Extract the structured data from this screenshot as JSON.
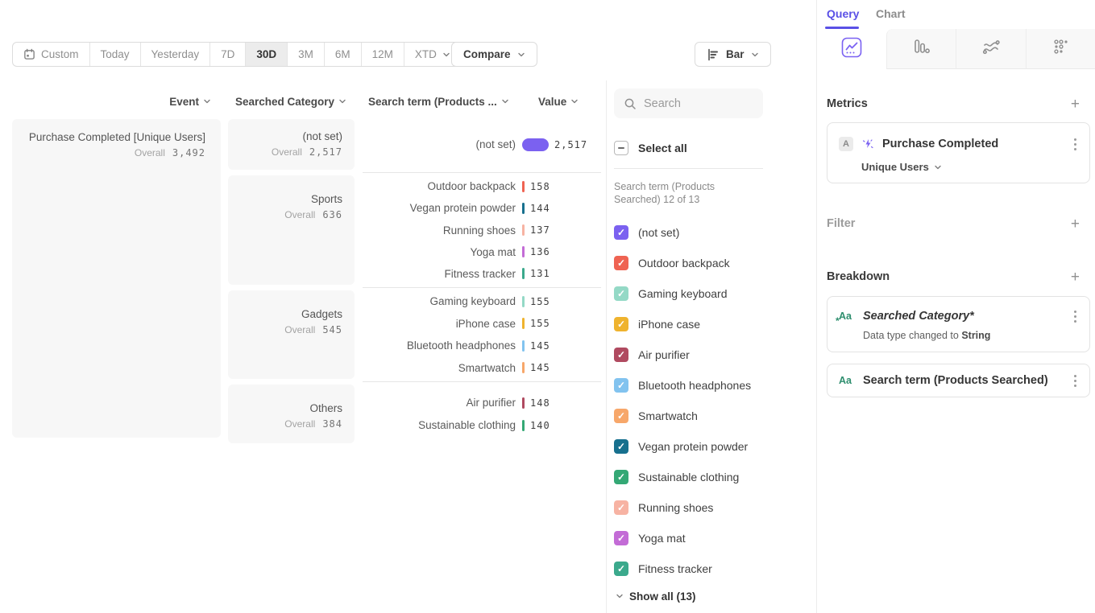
{
  "colors": {
    "accent_purple": "#5a50e6",
    "icon_purple": "#7b62f2",
    "green_icon": "#2e8e6e"
  },
  "icons": {
    "plus": "+"
  },
  "toolbar": {
    "date_ranges": [
      "Custom",
      "Today",
      "Yesterday",
      "7D",
      "30D",
      "3M",
      "6M",
      "12M",
      "XTD"
    ],
    "selected_range": "30D",
    "compare_label": "Compare",
    "chart_type_label": "Bar"
  },
  "table": {
    "headers": {
      "event": "Event",
      "category": "Searched Category",
      "term": "Search term (Products ...",
      "value": "Value"
    },
    "overall_label": "Overall",
    "event": {
      "name": "Purchase Completed [Unique Users]",
      "overall_value": "3,492"
    },
    "groups": [
      {
        "category": "(not set)",
        "overall": "2,517",
        "rows": [
          {
            "term": "(not set)",
            "value": "2,517",
            "color": "#7b61f0",
            "big": true
          }
        ]
      },
      {
        "category": "Sports",
        "overall": "636",
        "rows": [
          {
            "term": "Outdoor backpack",
            "value": "158",
            "color": "#ef6352"
          },
          {
            "term": "Vegan protein powder",
            "value": "144",
            "color": "#17708e"
          },
          {
            "term": "Running shoes",
            "value": "137",
            "color": "#f7b3a3"
          },
          {
            "term": "Yoga mat",
            "value": "136",
            "color": "#c36cd6"
          },
          {
            "term": "Fitness tracker",
            "value": "131",
            "color": "#3ba98c"
          }
        ]
      },
      {
        "category": "Gadgets",
        "overall": "545",
        "rows": [
          {
            "term": "Gaming keyboard",
            "value": "155",
            "color": "#94d9c6"
          },
          {
            "term": "iPhone case",
            "value": "155",
            "color": "#efb32e"
          },
          {
            "term": "Bluetooth headphones",
            "value": "145",
            "color": "#82c3ef"
          },
          {
            "term": "Smartwatch",
            "value": "145",
            "color": "#f7a76a"
          }
        ]
      },
      {
        "category": "Others",
        "overall": "384",
        "rows": [
          {
            "term": "Air purifier",
            "value": "148",
            "color": "#b04a60"
          },
          {
            "term": "Sustainable clothing",
            "value": "140",
            "color": "#34a875"
          }
        ]
      }
    ]
  },
  "legend": {
    "search_placeholder": "Search",
    "select_all_label": "Select all",
    "list_label": "Search term (Products Searched) 12 of 13",
    "items": [
      {
        "label": "(not set)",
        "color": "#7b61f0",
        "checked": true
      },
      {
        "label": "Outdoor backpack",
        "color": "#ef6352",
        "checked": true
      },
      {
        "label": "Gaming keyboard",
        "color": "#94d9c6",
        "checked": true
      },
      {
        "label": "iPhone case",
        "color": "#efb32e",
        "checked": true
      },
      {
        "label": "Air purifier",
        "color": "#b04a60",
        "checked": true
      },
      {
        "label": "Bluetooth headphones",
        "color": "#82c3ef",
        "checked": true
      },
      {
        "label": "Smartwatch",
        "color": "#f7a76a",
        "checked": true
      },
      {
        "label": "Vegan protein powder",
        "color": "#17708e",
        "checked": true
      },
      {
        "label": "Sustainable clothing",
        "color": "#34a875",
        "checked": true
      },
      {
        "label": "Running shoes",
        "color": "#f7b3a3",
        "checked": true
      },
      {
        "label": "Yoga mat",
        "color": "#c36cd6",
        "checked": true
      },
      {
        "label": "Fitness tracker",
        "color": "#3ba98c",
        "checked": true,
        "pattern": true
      }
    ],
    "show_all_label": "Show all (13)"
  },
  "query_panel": {
    "header_tabs": [
      {
        "label": "Query",
        "active": true
      },
      {
        "label": "Chart",
        "active": false
      }
    ],
    "view_tabs": [
      {
        "icon": "insights",
        "active": true
      },
      {
        "icon": "funnels",
        "active": false
      },
      {
        "icon": "flows",
        "active": false
      },
      {
        "icon": "retention",
        "active": false
      }
    ],
    "metrics_heading": "Metrics",
    "metric": {
      "badge": "A",
      "name": "Purchase Completed",
      "aggregation": "Unique Users"
    },
    "filter_heading": "Filter",
    "breakdown_heading": "Breakdown",
    "breakdowns": [
      {
        "label": "Searched Category*",
        "italic": true,
        "modified": true,
        "note": "Data type changed to ",
        "note_bold": "String"
      },
      {
        "label": "Search term (Products Searched)",
        "italic": false,
        "modified": false
      }
    ]
  },
  "chart_data": {
    "type": "bar",
    "title": "Purchase Completed [Unique Users]",
    "overall_total": 3492,
    "groups": [
      {
        "category": "(not set)",
        "overall": 2517,
        "terms": [
          {
            "term": "(not set)",
            "value": 2517
          }
        ]
      },
      {
        "category": "Sports",
        "overall": 636,
        "terms": [
          {
            "term": "Outdoor backpack",
            "value": 158
          },
          {
            "term": "Vegan protein powder",
            "value": 144
          },
          {
            "term": "Running shoes",
            "value": 137
          },
          {
            "term": "Yoga mat",
            "value": 136
          },
          {
            "term": "Fitness tracker",
            "value": 131
          }
        ]
      },
      {
        "category": "Gadgets",
        "overall": 545,
        "terms": [
          {
            "term": "Gaming keyboard",
            "value": 155
          },
          {
            "term": "iPhone case",
            "value": 155
          },
          {
            "term": "Bluetooth headphones",
            "value": 145
          },
          {
            "term": "Smartwatch",
            "value": 145
          }
        ]
      },
      {
        "category": "Others",
        "overall": 384,
        "terms": [
          {
            "term": "Air purifier",
            "value": 148
          },
          {
            "term": "Sustainable clothing",
            "value": 140
          }
        ]
      }
    ]
  }
}
